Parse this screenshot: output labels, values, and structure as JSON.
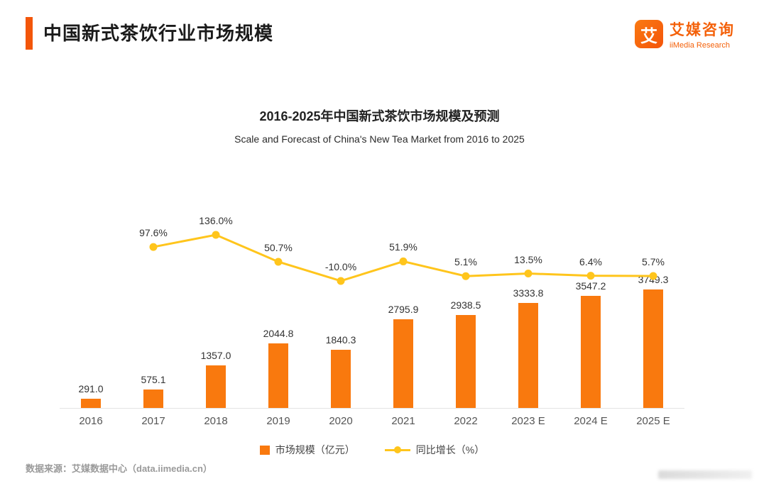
{
  "header": {
    "title": "中国新式茶饮行业市场规模",
    "logo": {
      "icon_char": "艾",
      "name_cn": "艾媒咨询",
      "name_en": "iiMedia Research"
    }
  },
  "colors": {
    "accent": "#F3560A",
    "bar": "#F9790E",
    "line": "#FFC51C"
  },
  "chart_data": {
    "type": "bar",
    "title": "2016-2025年中国新式茶饮市场规模及预测",
    "subtitle": "Scale and Forecast of China's New Tea Market from 2016 to 2025",
    "categories": [
      "2016",
      "2017",
      "2018",
      "2019",
      "2020",
      "2021",
      "2022",
      "2023 E",
      "2024 E",
      "2025 E"
    ],
    "series": [
      {
        "name": "市场规模（亿元）",
        "type": "bar",
        "color": "#F9790E",
        "values": [
          291.0,
          575.1,
          1357.0,
          2044.8,
          1840.3,
          2795.9,
          2938.5,
          3333.8,
          3547.2,
          3749.3
        ],
        "labels": [
          "291.0",
          "575.1",
          "1357.0",
          "2044.8",
          "1840.3",
          "2795.9",
          "2938.5",
          "3333.8",
          "3547.2",
          "3749.3"
        ]
      },
      {
        "name": "同比增长（%）",
        "type": "line",
        "color": "#FFC51C",
        "values": [
          null,
          97.6,
          136.0,
          50.7,
          -10.0,
          51.9,
          5.1,
          13.5,
          6.4,
          5.7
        ],
        "labels": [
          "",
          "97.6%",
          "136.0%",
          "50.7%",
          "-10.0%",
          "51.9%",
          "5.1%",
          "13.5%",
          "6.4%",
          "5.7%"
        ]
      }
    ],
    "legend": [
      "市场规模（亿元）",
      "同比增长（%）"
    ],
    "legend_position": "bottom",
    "grid": false,
    "xlabel": "",
    "ylabel": ""
  },
  "footer": {
    "source": "数据来源：艾媒数据中心（data.iimedia.cn）"
  }
}
